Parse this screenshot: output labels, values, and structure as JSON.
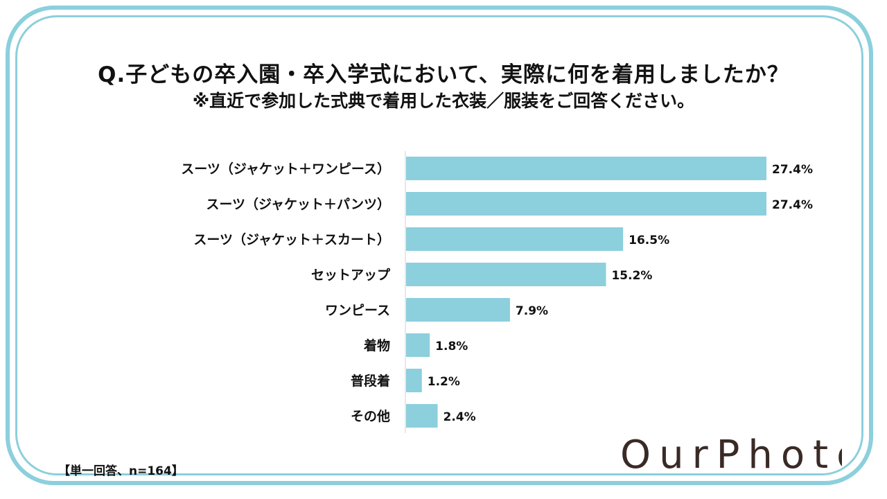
{
  "title": "Q.子どもの卒入園・卒入学式において、実際に何を着用しましたか？",
  "subtitle": "※直近で参加した式典で着用した衣装／服装をご回答ください。",
  "chart_data": {
    "type": "bar",
    "orientation": "horizontal",
    "title": "Q.子どもの卒入園・卒入学式において、実際に何を着用しましたか？",
    "categories": [
      "スーツ（ジャケット＋ワンピース）",
      "スーツ（ジャケット＋パンツ）",
      "スーツ（ジャケット＋スカート）",
      "セットアップ",
      "ワンピース",
      "着物",
      "普段着",
      "その他"
    ],
    "values": [
      27.4,
      27.4,
      16.5,
      15.2,
      7.9,
      1.8,
      1.2,
      2.4
    ],
    "value_labels": [
      "27.4%",
      "27.4%",
      "16.5%",
      "15.2%",
      "7.9%",
      "1.8%",
      "1.2%",
      "2.4%"
    ],
    "unit": "%",
    "xlim": [
      0,
      30
    ],
    "color": "#8ccfdd"
  },
  "footnote": "【単一回答、n=164】",
  "logo": {
    "text": "OurPhoto",
    "color": "#3a2a26"
  },
  "colors": {
    "frame": "#8ccfdd",
    "bar": "#8ccfdd",
    "text": "#111111"
  }
}
